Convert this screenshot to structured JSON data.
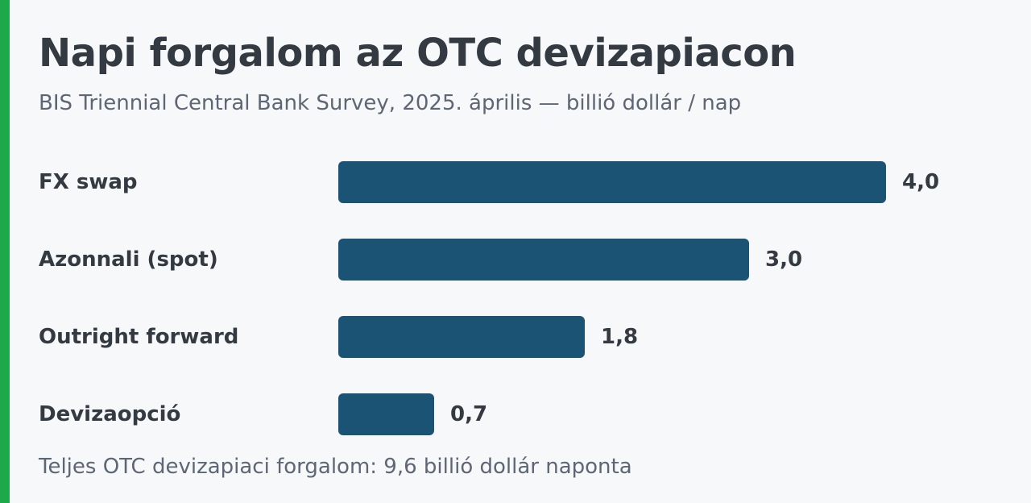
{
  "colors": {
    "accent": "#1da84a",
    "bar": "#1b5374",
    "background": "#f6f8fa"
  },
  "chart_data": {
    "type": "bar",
    "orientation": "horizontal",
    "title": "Napi forgalom az OTC devizapiacon",
    "subtitle": "BIS Triennial Central Bank Survey, 2025. április — billió dollár / nap",
    "categories": [
      "FX swap",
      "Azonnali (spot)",
      "Outright forward",
      "Devizaopció"
    ],
    "values": [
      4.0,
      3.0,
      1.8,
      0.7
    ],
    "value_labels": [
      "4,0",
      "3,0",
      "1,8",
      "0,7"
    ],
    "xlim": [
      0,
      4.0
    ],
    "grid": false,
    "legend": "none",
    "footnote": "Teljes OTC devizapiaci forgalom: 9,6 billió dollár naponta"
  }
}
